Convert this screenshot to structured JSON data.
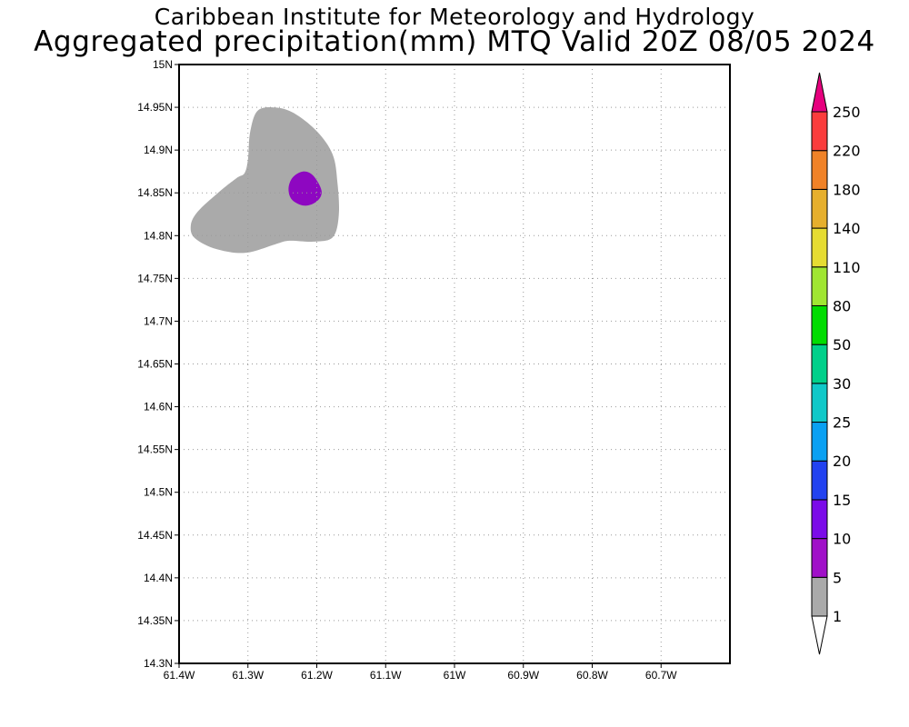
{
  "header": {
    "title": "Caribbean Institute for Meteorology and Hydrology",
    "subtitle": "Aggregated precipitation(mm) MTQ Valid 20Z 08/05 2024"
  },
  "map": {
    "lon_range": [
      -61.4,
      -60.6
    ],
    "lat_range": [
      14.3,
      15.0
    ],
    "x_ticks": [
      {
        "lon": -61.4,
        "label": "61.4W"
      },
      {
        "lon": -61.3,
        "label": "61.3W"
      },
      {
        "lon": -61.2,
        "label": "61.2W"
      },
      {
        "lon": -61.1,
        "label": "61.1W"
      },
      {
        "lon": -61.0,
        "label": "61W"
      },
      {
        "lon": -60.9,
        "label": "60.9W"
      },
      {
        "lon": -60.8,
        "label": "60.8W"
      },
      {
        "lon": -60.7,
        "label": "60.7W"
      }
    ],
    "y_ticks": [
      {
        "lat": 15.0,
        "label": "15N"
      },
      {
        "lat": 14.95,
        "label": "14.95N"
      },
      {
        "lat": 14.9,
        "label": "14.9N"
      },
      {
        "lat": 14.85,
        "label": "14.85N"
      },
      {
        "lat": 14.8,
        "label": "14.8N"
      },
      {
        "lat": 14.75,
        "label": "14.75N"
      },
      {
        "lat": 14.7,
        "label": "14.7N"
      },
      {
        "lat": 14.65,
        "label": "14.65N"
      },
      {
        "lat": 14.6,
        "label": "14.6N"
      },
      {
        "lat": 14.55,
        "label": "14.55N"
      },
      {
        "lat": 14.5,
        "label": "14.5N"
      },
      {
        "lat": 14.45,
        "label": "14.45N"
      },
      {
        "lat": 14.4,
        "label": "14.4N"
      },
      {
        "lat": 14.35,
        "label": "14.35N"
      },
      {
        "lat": 14.3,
        "label": "14.3N"
      }
    ],
    "grid": "dotted",
    "contours": [
      {
        "range_mm": "1-5",
        "color": "#aaaaaa",
        "points": [
          [
            -61.303,
            14.78
          ],
          [
            -61.345,
            14.784
          ],
          [
            -61.377,
            14.797
          ],
          [
            -61.383,
            14.812
          ],
          [
            -61.373,
            14.828
          ],
          [
            -61.345,
            14.849
          ],
          [
            -61.317,
            14.867
          ],
          [
            -61.305,
            14.873
          ],
          [
            -61.3,
            14.889
          ],
          [
            -61.297,
            14.92
          ],
          [
            -61.287,
            14.945
          ],
          [
            -61.265,
            14.95
          ],
          [
            -61.235,
            14.944
          ],
          [
            -61.2,
            14.922
          ],
          [
            -61.177,
            14.895
          ],
          [
            -61.17,
            14.862
          ],
          [
            -61.168,
            14.824
          ],
          [
            -61.177,
            14.798
          ],
          [
            -61.205,
            14.793
          ],
          [
            -61.24,
            14.794
          ],
          [
            -61.26,
            14.79
          ]
        ]
      },
      {
        "range_mm": "5-10",
        "color": "#8e07c1",
        "points": [
          [
            -61.22,
            14.875
          ],
          [
            -61.235,
            14.868
          ],
          [
            -61.241,
            14.855
          ],
          [
            -61.236,
            14.842
          ],
          [
            -61.218,
            14.835
          ],
          [
            -61.2,
            14.84
          ],
          [
            -61.193,
            14.852
          ],
          [
            -61.205,
            14.87
          ]
        ]
      }
    ]
  },
  "colorbar": {
    "levels": [
      "1",
      "5",
      "10",
      "15",
      "20",
      "25",
      "30",
      "50",
      "80",
      "110",
      "140",
      "180",
      "220",
      "250"
    ],
    "colors": [
      "#ffffff",
      "#aaaaaa",
      "#a010c8",
      "#7b0be8",
      "#2242f0",
      "#0aa0f2",
      "#10c8c8",
      "#00d08a",
      "#00dc00",
      "#a0e632",
      "#e6dc32",
      "#e6af2d",
      "#f08228",
      "#fa3c3c",
      "#e6007e"
    ]
  }
}
